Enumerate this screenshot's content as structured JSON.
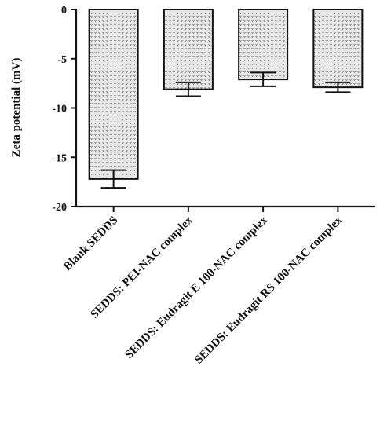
{
  "chart_data": {
    "type": "bar",
    "title": "",
    "xlabel": "",
    "ylabel": "Zeta potential (mV)",
    "ylim": [
      -20,
      0
    ],
    "yticks": [
      0,
      -5,
      -10,
      -15,
      -20
    ],
    "ytick_labels": [
      "0",
      "-5",
      "-10",
      "-15",
      "-20"
    ],
    "categories": [
      "Blank SEDDS",
      "SEDDS: PEI-NAC complex",
      "SEDDS: Eudragit E 100-NAC complex",
      "SEDDS: Eudragit RS 100-NAC complex"
    ],
    "values": [
      -17.2,
      -8.1,
      -7.1,
      -7.9
    ],
    "errors": [
      0.9,
      0.7,
      0.7,
      0.5
    ],
    "grid": false,
    "legend": "none",
    "bar_fill": "#d9d9d9",
    "bar_stroke": "#111111"
  }
}
